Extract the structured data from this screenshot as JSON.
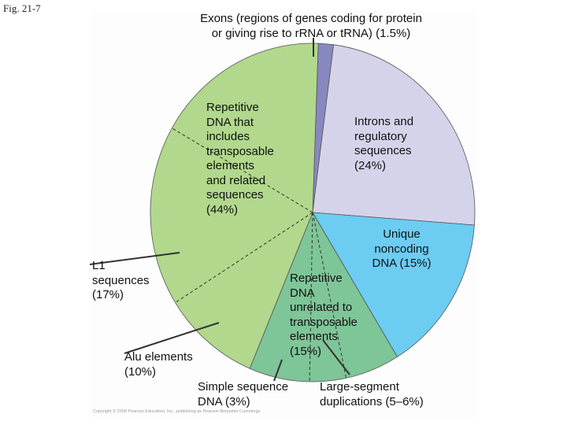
{
  "figure_label": "Fig. 21-7",
  "copyright": "Copyright © 2008 Pearson Education, Inc., publishing as Pearson Benjamin Cummings.",
  "chart_data": {
    "type": "pie",
    "title": "",
    "slices": [
      {
        "label": "Exons (regions of genes coding for protein\nor giving rise to rRNA or tRNA) (1.5%)",
        "value": 1.5,
        "color": "#8888c0"
      },
      {
        "label": "Introns and\nregulatory\nsequences\n(24%)",
        "value": 24,
        "color": "#d5d3ea"
      },
      {
        "label": "Unique\nnoncoding\nDNA (15%)",
        "value": 15,
        "color": "#6cccf2"
      },
      {
        "label": "Repetitive\nDNA\nunrelated to\ntransposable\nelements\n(15%)",
        "value": 15,
        "color": "#7ec598"
      },
      {
        "label": "Repetitive\nDNA that\nincludes\ntransposable\nelements\nand related\nsequences\n(44%)",
        "value": 44,
        "color": "#b1d88c"
      }
    ],
    "sub_slices": [
      {
        "parent": "Repetitive DNA unrelated to transposable elements",
        "label": "Simple sequence\nDNA (3%)",
        "value": 3
      },
      {
        "parent": "Repetitive DNA unrelated to transposable elements",
        "label": "Large-segment\nduplications (5–6%)",
        "value": "5–6"
      },
      {
        "parent": "Repetitive DNA that includes transposable elements",
        "label": "L1\nsequences\n(17%)",
        "value": 17
      },
      {
        "parent": "Repetitive DNA that includes transposable elements",
        "label": "Alu elements\n(10%)",
        "value": 10
      }
    ]
  }
}
